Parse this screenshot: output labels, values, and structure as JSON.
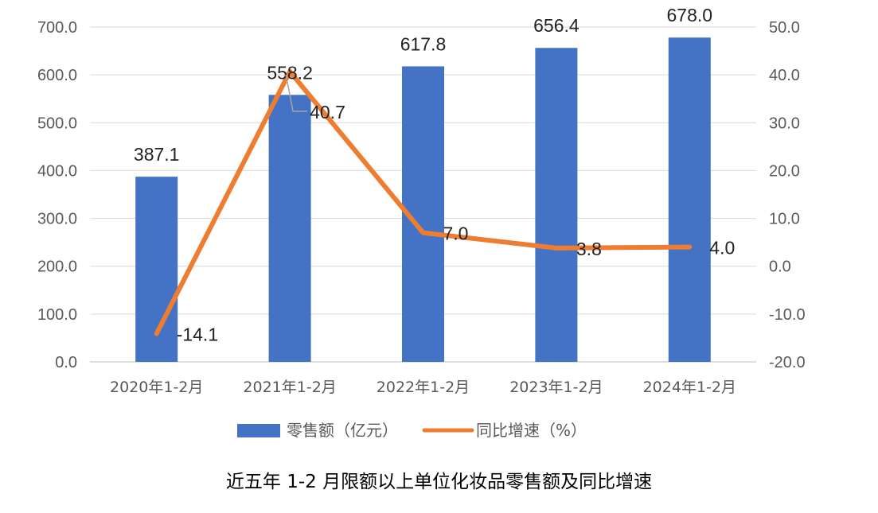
{
  "chart_data": {
    "type": "bar+line",
    "title": "近五年 1-2 月限额以上单位化妆品零售额及同比增速",
    "categories": [
      "2020年1-2月",
      "2021年1-2月",
      "2022年1-2月",
      "2023年1-2月",
      "2024年1-2月"
    ],
    "series": [
      {
        "name": "零售额（亿元）",
        "type": "bar",
        "axis": "left",
        "values": [
          387.1,
          558.2,
          617.8,
          656.4,
          678.0
        ],
        "labels": [
          "387.1",
          "558.2",
          "617.8",
          "656.4",
          "678.0"
        ],
        "color": "#4472C4"
      },
      {
        "name": "同比增速（%）",
        "type": "line",
        "axis": "right",
        "values": [
          -14.1,
          40.7,
          7.0,
          3.8,
          4.0
        ],
        "labels": [
          "-14.1",
          "40.7",
          "7.0",
          "3.8",
          "4.0"
        ],
        "color": "#ED7D31"
      }
    ],
    "y_left": {
      "min": 0,
      "max": 700,
      "step": 100,
      "ticks": [
        "0.0",
        "100.0",
        "200.0",
        "300.0",
        "400.0",
        "500.0",
        "600.0",
        "700.0"
      ]
    },
    "y_right": {
      "min": -20,
      "max": 50,
      "step": 10,
      "ticks": [
        "-20.0",
        "-10.0",
        "0.0",
        "10.0",
        "20.0",
        "30.0",
        "40.0",
        "50.0"
      ]
    },
    "grid": true,
    "legend_position": "bottom"
  }
}
